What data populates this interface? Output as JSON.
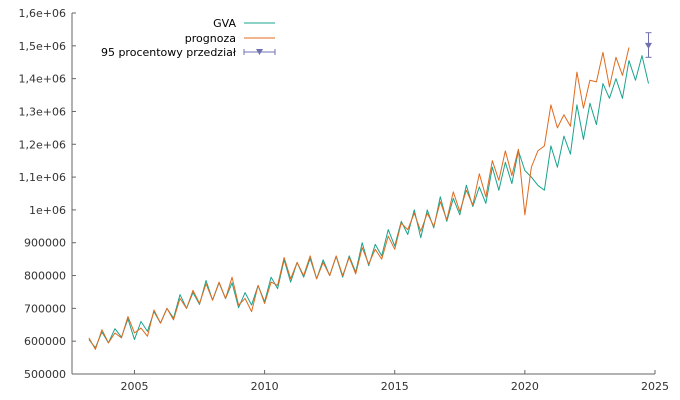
{
  "chart_data": {
    "type": "line",
    "xlabel": "",
    "ylabel": "",
    "xlim": [
      2002.6,
      2025.0
    ],
    "ylim": [
      500000,
      1600000
    ],
    "x_ticks": [
      2005,
      2010,
      2015,
      2020,
      2025
    ],
    "x_tick_labels": [
      "2005",
      "2010",
      "2015",
      "2020",
      "2025"
    ],
    "y_ticks": [
      500000,
      600000,
      700000,
      800000,
      900000,
      1000000,
      1100000,
      1200000,
      1300000,
      1400000,
      1500000,
      1600000
    ],
    "y_tick_labels": [
      "500000",
      "600000",
      "700000",
      "800000",
      "900000",
      "1e+06",
      "1,1e+06",
      "1,2e+06",
      "1,3e+06",
      "1,4e+06",
      "1,5e+06",
      "1,6e+06"
    ],
    "grid": false,
    "legend_position": "top-right",
    "x_start": 2003.25,
    "x_step": 0.25,
    "series": [
      {
        "name": "GVA",
        "color": "#1aa38c",
        "values": [
          605000,
          580000,
          628000,
          595000,
          638000,
          612000,
          668000,
          605000,
          660000,
          630000,
          690000,
          655000,
          700000,
          670000,
          742000,
          700000,
          748000,
          712000,
          785000,
          725000,
          778000,
          730000,
          778000,
          702000,
          748000,
          710000,
          770000,
          720000,
          795000,
          760000,
          848000,
          780000,
          840000,
          795000,
          852000,
          790000,
          848000,
          800000,
          858000,
          795000,
          860000,
          810000,
          900000,
          830000,
          895000,
          860000,
          940000,
          890000,
          965000,
          925000,
          1000000,
          915000,
          1000000,
          945000,
          1040000,
          965000,
          1035000,
          985000,
          1075000,
          1010000,
          1070000,
          1020000,
          1130000,
          1060000,
          1145000,
          1080000,
          1180000,
          1120000,
          1100000,
          1075000,
          1060000,
          1195000,
          1130000,
          1225000,
          1170000,
          1320000,
          1215000,
          1325000,
          1260000,
          1385000,
          1340000,
          1400000,
          1340000,
          1455000,
          1395000,
          1470000,
          1385000
        ]
      },
      {
        "name": "prognoza",
        "color": "#e06a1e",
        "values": [
          610000,
          575000,
          635000,
          595000,
          625000,
          610000,
          675000,
          625000,
          640000,
          615000,
          695000,
          655000,
          700000,
          665000,
          730000,
          700000,
          755000,
          715000,
          775000,
          725000,
          780000,
          730000,
          795000,
          710000,
          730000,
          690000,
          770000,
          715000,
          780000,
          770000,
          855000,
          790000,
          840000,
          800000,
          860000,
          790000,
          840000,
          800000,
          860000,
          800000,
          855000,
          805000,
          885000,
          835000,
          880000,
          850000,
          920000,
          880000,
          960000,
          940000,
          990000,
          935000,
          990000,
          950000,
          1025000,
          970000,
          1055000,
          995000,
          1060000,
          1015000,
          1110000,
          1040000,
          1150000,
          1090000,
          1180000,
          1105000,
          1185000,
          985000,
          1130000,
          1180000,
          1195000,
          1320000,
          1250000,
          1290000,
          1255000,
          1420000,
          1310000,
          1395000,
          1390000,
          1480000,
          1375000,
          1465000,
          1410000,
          1495000
        ]
      }
    ],
    "interval": {
      "name": "95 procentowy przedział",
      "color": "#7070b0",
      "x": 2024.75,
      "y": 1500000,
      "low": 1465000,
      "high": 1540000
    }
  }
}
